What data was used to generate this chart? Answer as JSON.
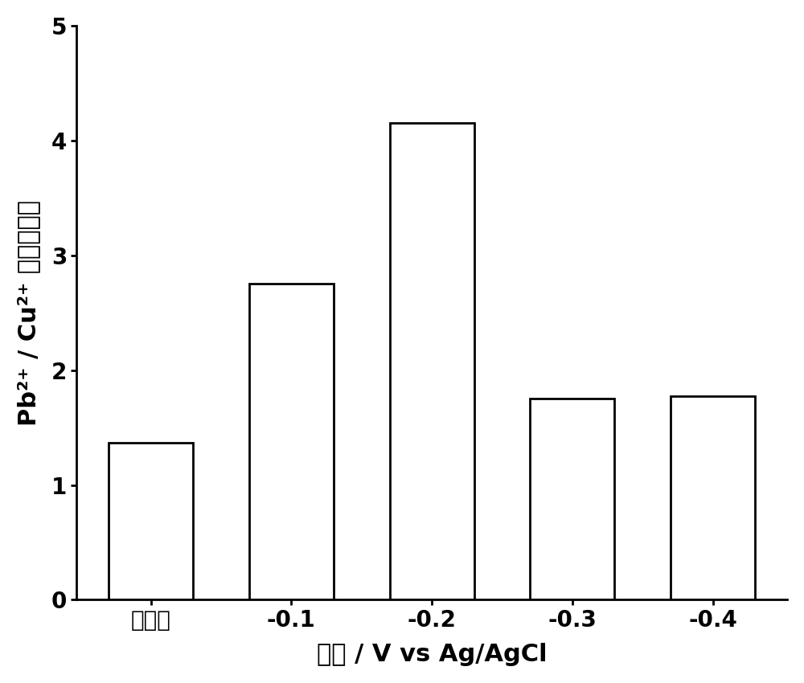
{
  "categories": [
    "无电压",
    "-0.1",
    "-0.2",
    "-0.3",
    "-0.4"
  ],
  "values": [
    1.37,
    2.75,
    4.15,
    1.75,
    1.77
  ],
  "bar_color": "#ffffff",
  "bar_edgecolor": "#000000",
  "bar_linewidth": 2.0,
  "bar_width": 0.6,
  "xlabel": "电压 / V vs Ag/AgCl",
  "ylabel": "Pb²⁺ / Cu²⁺ 选择性系数",
  "ylim": [
    0,
    5
  ],
  "yticks": [
    0,
    1,
    2,
    3,
    4,
    5
  ],
  "title_fontsize": 22,
  "label_fontsize": 22,
  "tick_fontsize": 20,
  "background_color": "#ffffff",
  "spine_linewidth": 2.0
}
